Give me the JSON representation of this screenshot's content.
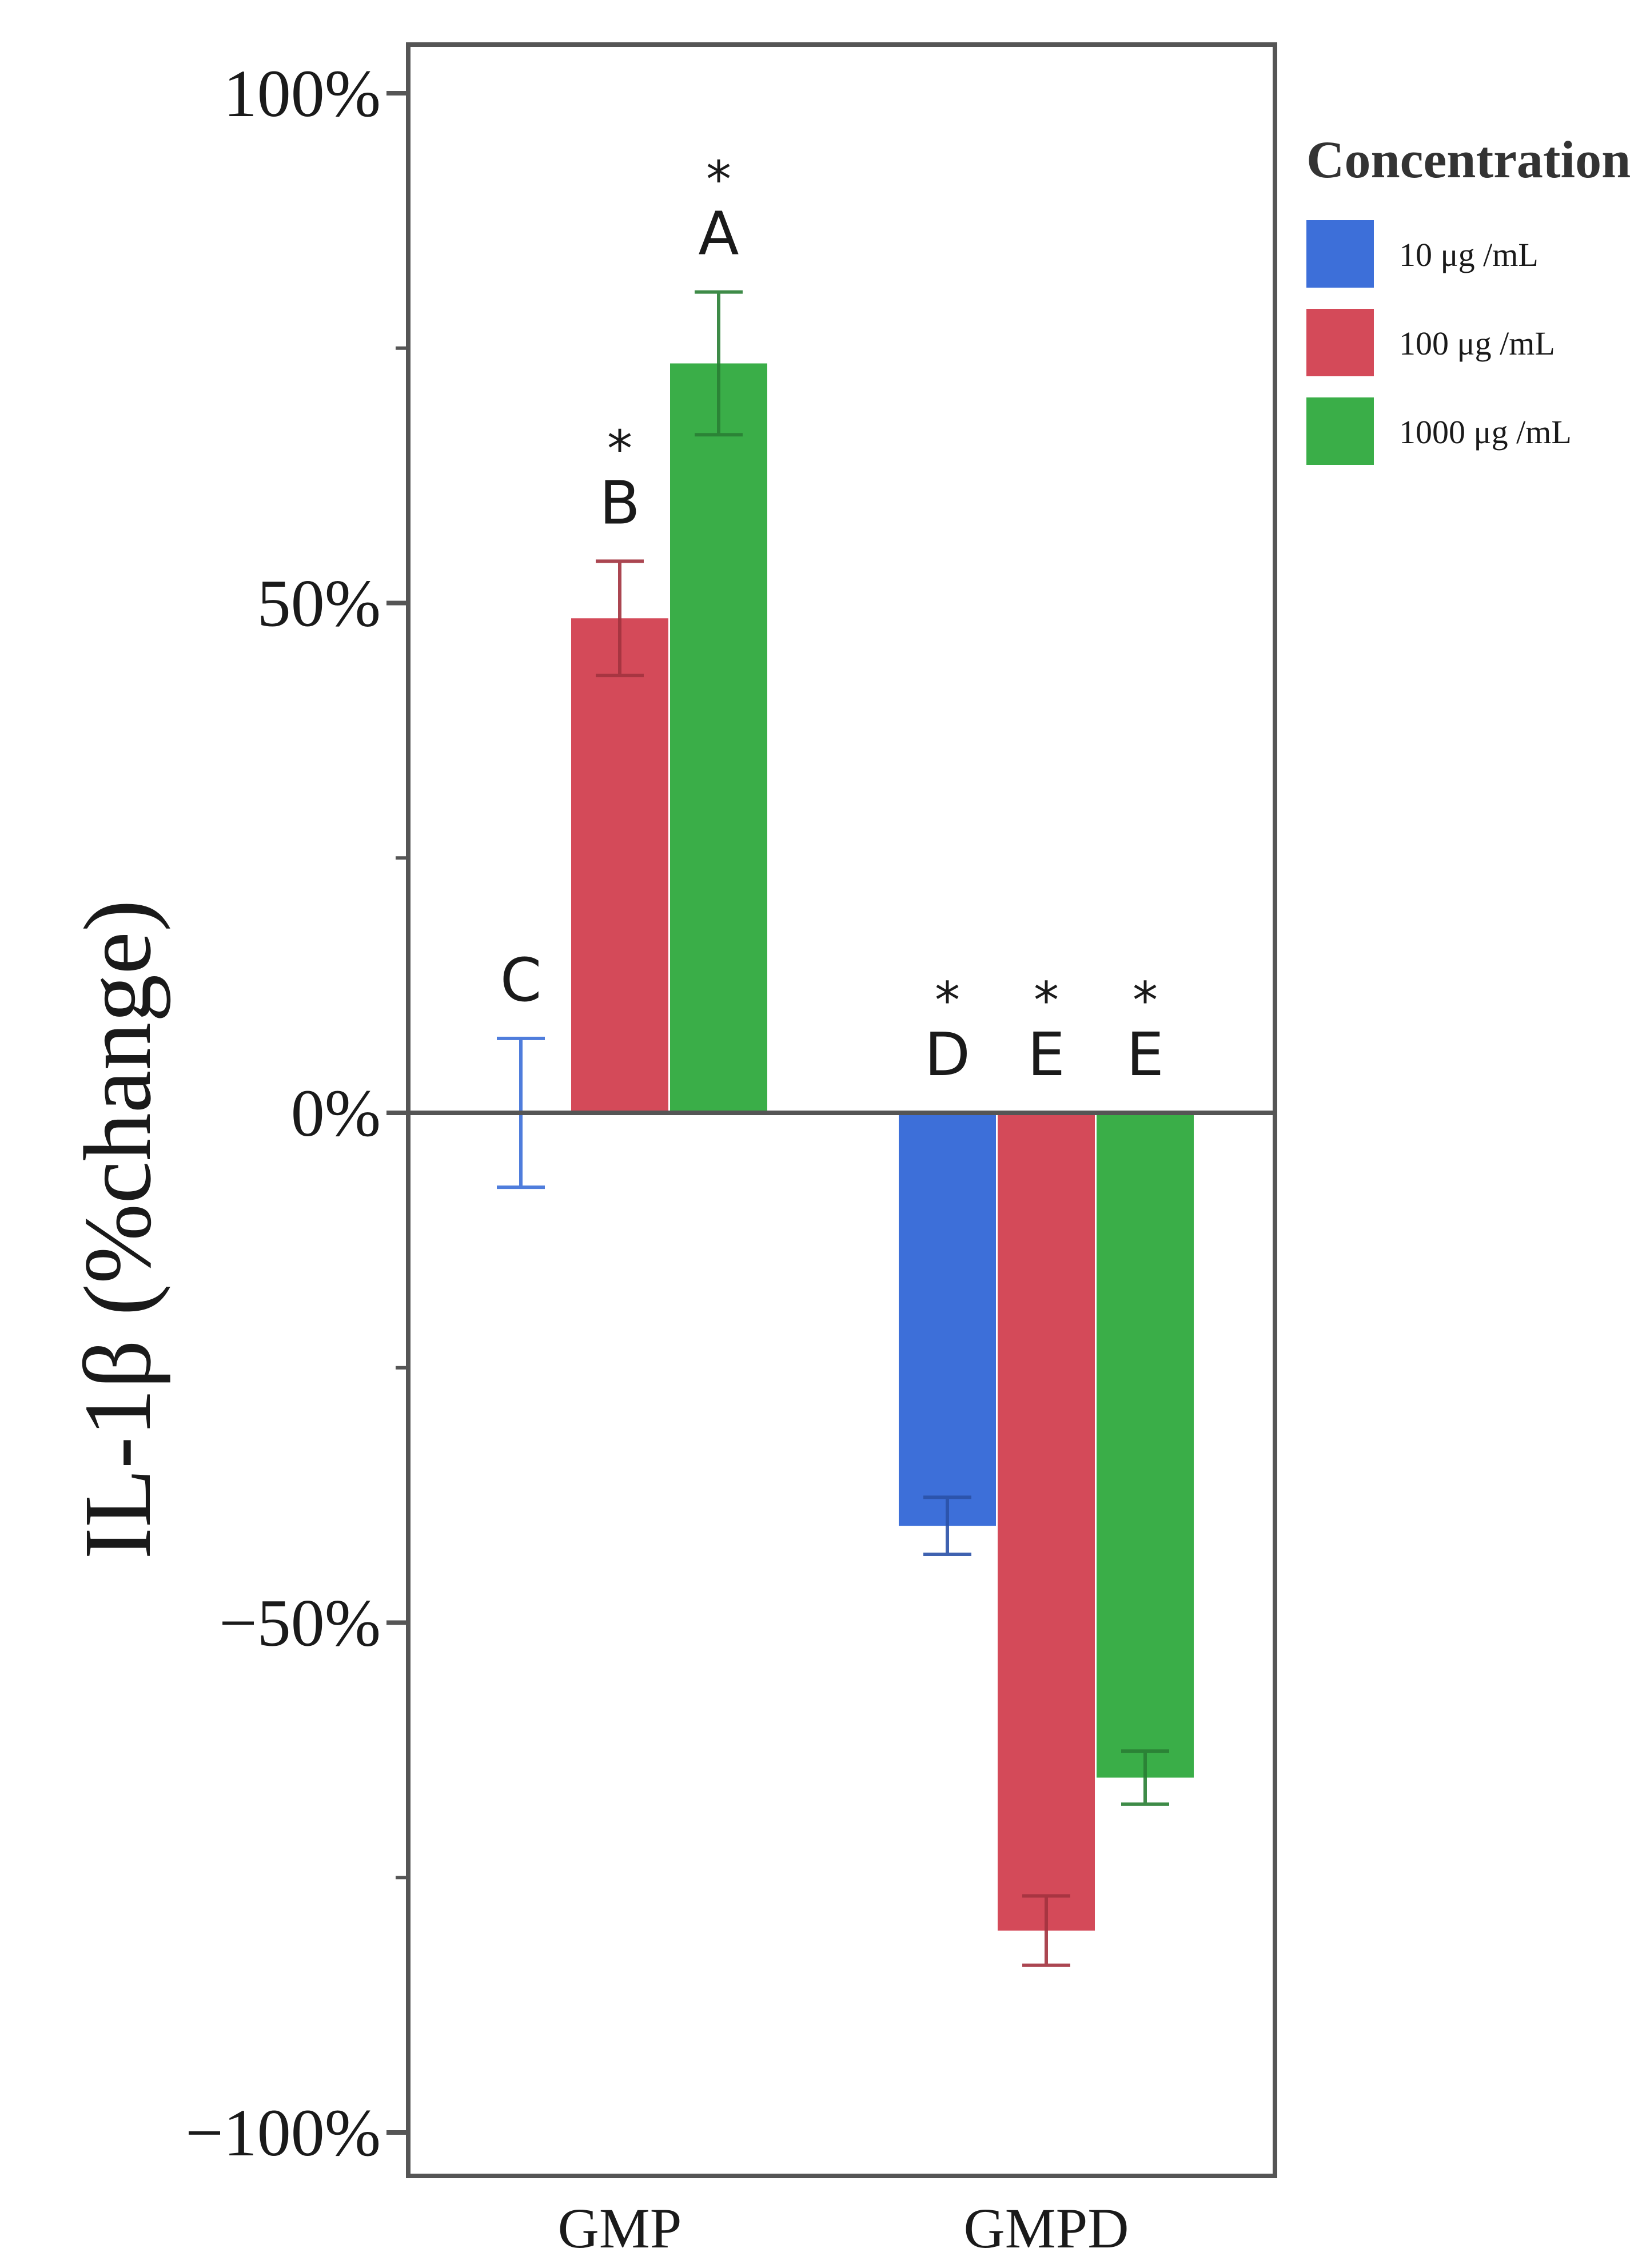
{
  "chart_data": {
    "type": "bar",
    "title": "",
    "xlabel": "",
    "ylabel": "IL-1β (%change)",
    "ylim": [
      -100,
      100
    ],
    "yticks": [
      100,
      50,
      0,
      -50,
      -100
    ],
    "ytick_labels": [
      "100%",
      "50%",
      "0%",
      "−50%",
      "−100%"
    ],
    "minor_ticks": [
      75,
      25,
      -25,
      -75
    ],
    "categories": [
      "GMP",
      "GMPD"
    ],
    "series": [
      {
        "name": "10 μg /mL",
        "color": "#3d6fd9",
        "values": [
          0,
          -40.5
        ],
        "errors": [
          7.3,
          2.8
        ],
        "letters": [
          "C",
          "D"
        ],
        "stars": [
          "",
          "*"
        ]
      },
      {
        "name": "100 μg /mL",
        "color": "#d44a59",
        "values": [
          48.5,
          -80.2
        ],
        "errors": [
          5.6,
          3.4
        ],
        "letters": [
          "B",
          "E"
        ],
        "stars": [
          "*",
          "*"
        ]
      },
      {
        "name": "1000 μg /mL",
        "color": "#3aae48",
        "values": [
          73.5,
          -65.2
        ],
        "errors": [
          7.0,
          2.6
        ],
        "letters": [
          "A",
          "E"
        ],
        "stars": [
          "*",
          "*"
        ]
      }
    ],
    "legend": {
      "title": "Concentration",
      "position": "right"
    },
    "grid": false
  }
}
